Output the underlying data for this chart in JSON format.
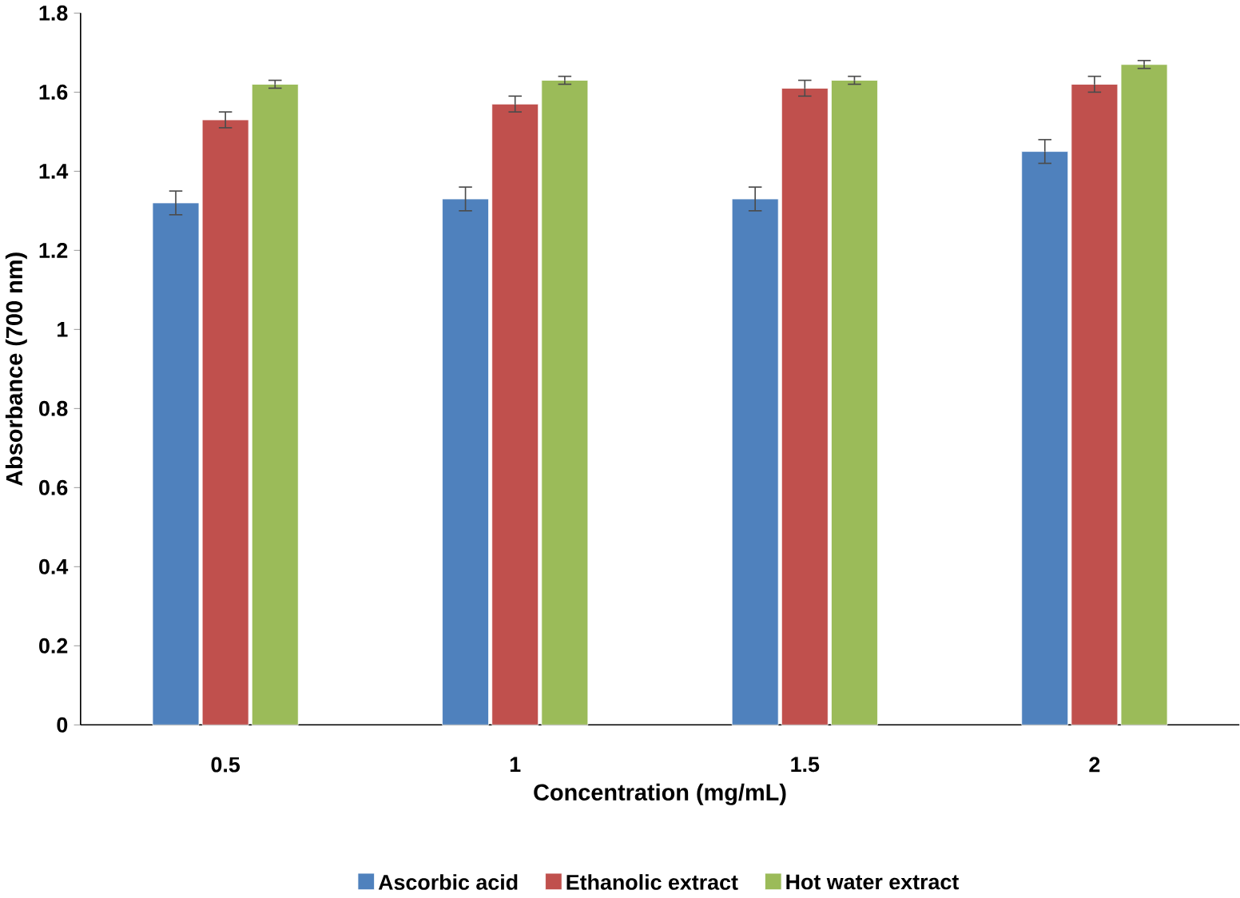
{
  "chart_data": {
    "type": "bar",
    "xlabel": "Concentration (mg/mL)",
    "ylabel": "Absorbance (700 nm)",
    "categories": [
      "0.5",
      "1",
      "1.5",
      "2"
    ],
    "series": [
      {
        "name": "Ascorbic acid",
        "color": "#4f81bd",
        "values": [
          1.32,
          1.33,
          1.33,
          1.45
        ],
        "errors": [
          0.03,
          0.03,
          0.03,
          0.03
        ]
      },
      {
        "name": "Ethanolic extract",
        "color": "#c0504d",
        "values": [
          1.53,
          1.57,
          1.61,
          1.62
        ],
        "errors": [
          0.02,
          0.02,
          0.02,
          0.02
        ]
      },
      {
        "name": "Hot water extract",
        "color": "#9bbb59",
        "values": [
          1.62,
          1.63,
          1.63,
          1.67
        ],
        "errors": [
          0.01,
          0.01,
          0.01,
          0.01
        ]
      }
    ],
    "ylim": [
      0,
      1.8
    ],
    "yticks": [
      0,
      0.2,
      0.4,
      0.6,
      0.8,
      1,
      1.2,
      1.4,
      1.6,
      1.8
    ],
    "grid": false,
    "legend": "bottom"
  }
}
